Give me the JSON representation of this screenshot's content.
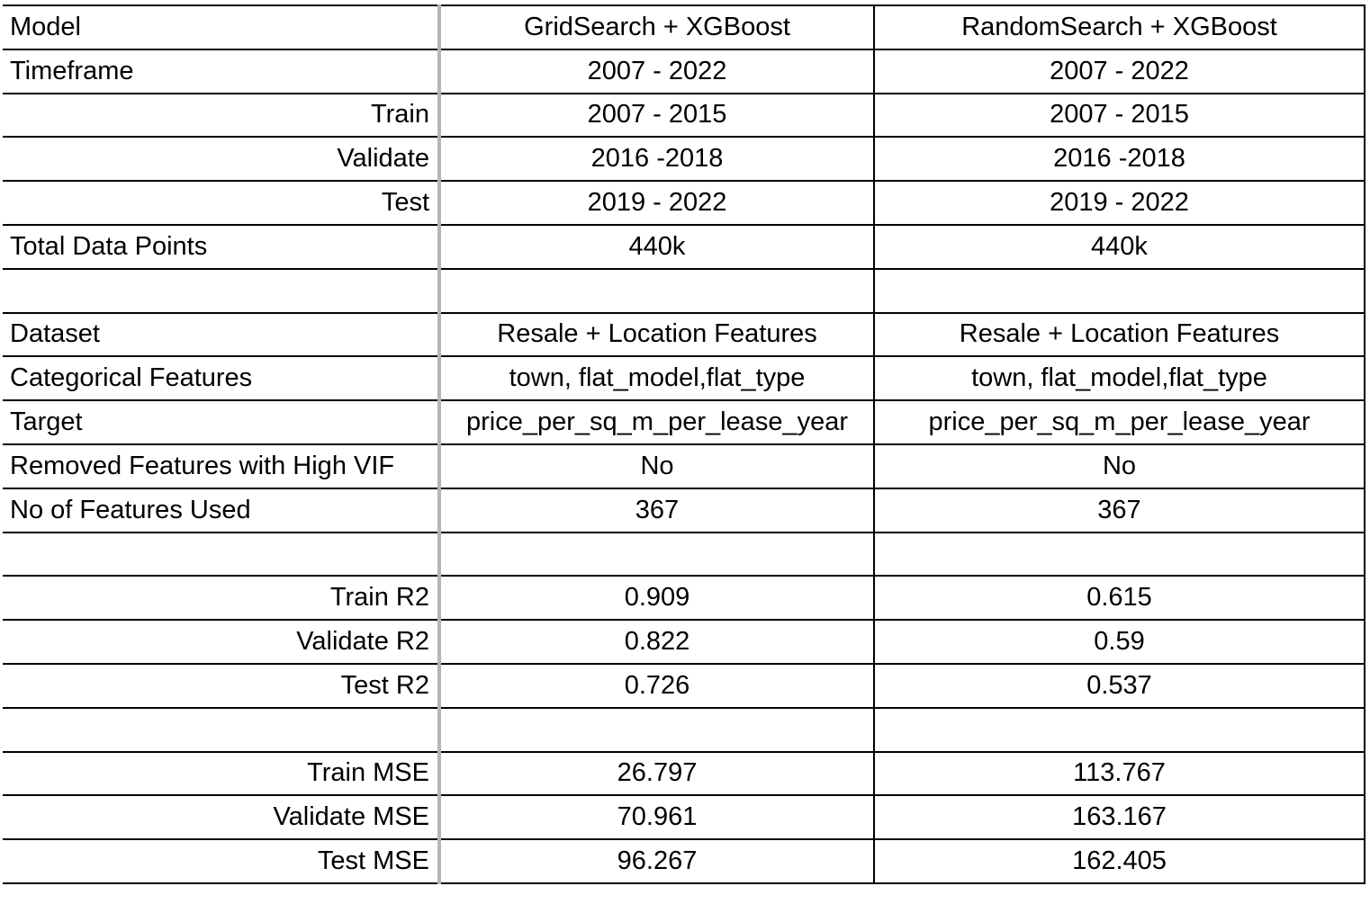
{
  "table": {
    "rows": [
      {
        "label": "Model",
        "align": "left",
        "grid": "GridSearch + XGBoost",
        "random": "RandomSearch + XGBoost"
      },
      {
        "label": "Timeframe",
        "align": "left",
        "grid": "2007 - 2022",
        "random": "2007 - 2022"
      },
      {
        "label": "Train",
        "align": "right",
        "grid": "2007 - 2015",
        "random": "2007 - 2015"
      },
      {
        "label": "Validate",
        "align": "right",
        "grid": "2016 -2018",
        "random": "2016 -2018"
      },
      {
        "label": "Test",
        "align": "right",
        "grid": "2019 - 2022",
        "random": "2019 - 2022"
      },
      {
        "label": "Total Data Points",
        "align": "left",
        "grid": "440k",
        "random": "440k"
      },
      {
        "label": "",
        "align": "left",
        "grid": "",
        "random": ""
      },
      {
        "label": "Dataset",
        "align": "left",
        "grid": "Resale + Location Features",
        "random": "Resale + Location Features"
      },
      {
        "label": "Categorical Features",
        "align": "left",
        "grid": "town, flat_model,flat_type",
        "random": "town, flat_model,flat_type"
      },
      {
        "label": "Target",
        "align": "left",
        "grid": "price_per_sq_m_per_lease_year",
        "random": "price_per_sq_m_per_lease_year"
      },
      {
        "label": "Removed Features with High VIF",
        "align": "left",
        "grid": "No",
        "random": "No"
      },
      {
        "label": "No of Features Used",
        "align": "left",
        "grid": "367",
        "random": "367"
      },
      {
        "label": "",
        "align": "left",
        "grid": "",
        "random": ""
      },
      {
        "label": "Train R2",
        "align": "right",
        "grid": "0.909",
        "random": "0.615"
      },
      {
        "label": "Validate R2",
        "align": "right",
        "grid": "0.822",
        "random": "0.59"
      },
      {
        "label": "Test R2",
        "align": "right",
        "grid": "0.726",
        "random": "0.537"
      },
      {
        "label": "",
        "align": "left",
        "grid": "",
        "random": ""
      },
      {
        "label": "Train MSE",
        "align": "right",
        "grid": "26.797",
        "random": "113.767"
      },
      {
        "label": "Validate MSE",
        "align": "right",
        "grid": "70.961",
        "random": "163.167"
      },
      {
        "label": "Test MSE",
        "align": "right",
        "grid": "96.267",
        "random": "162.405"
      }
    ]
  }
}
